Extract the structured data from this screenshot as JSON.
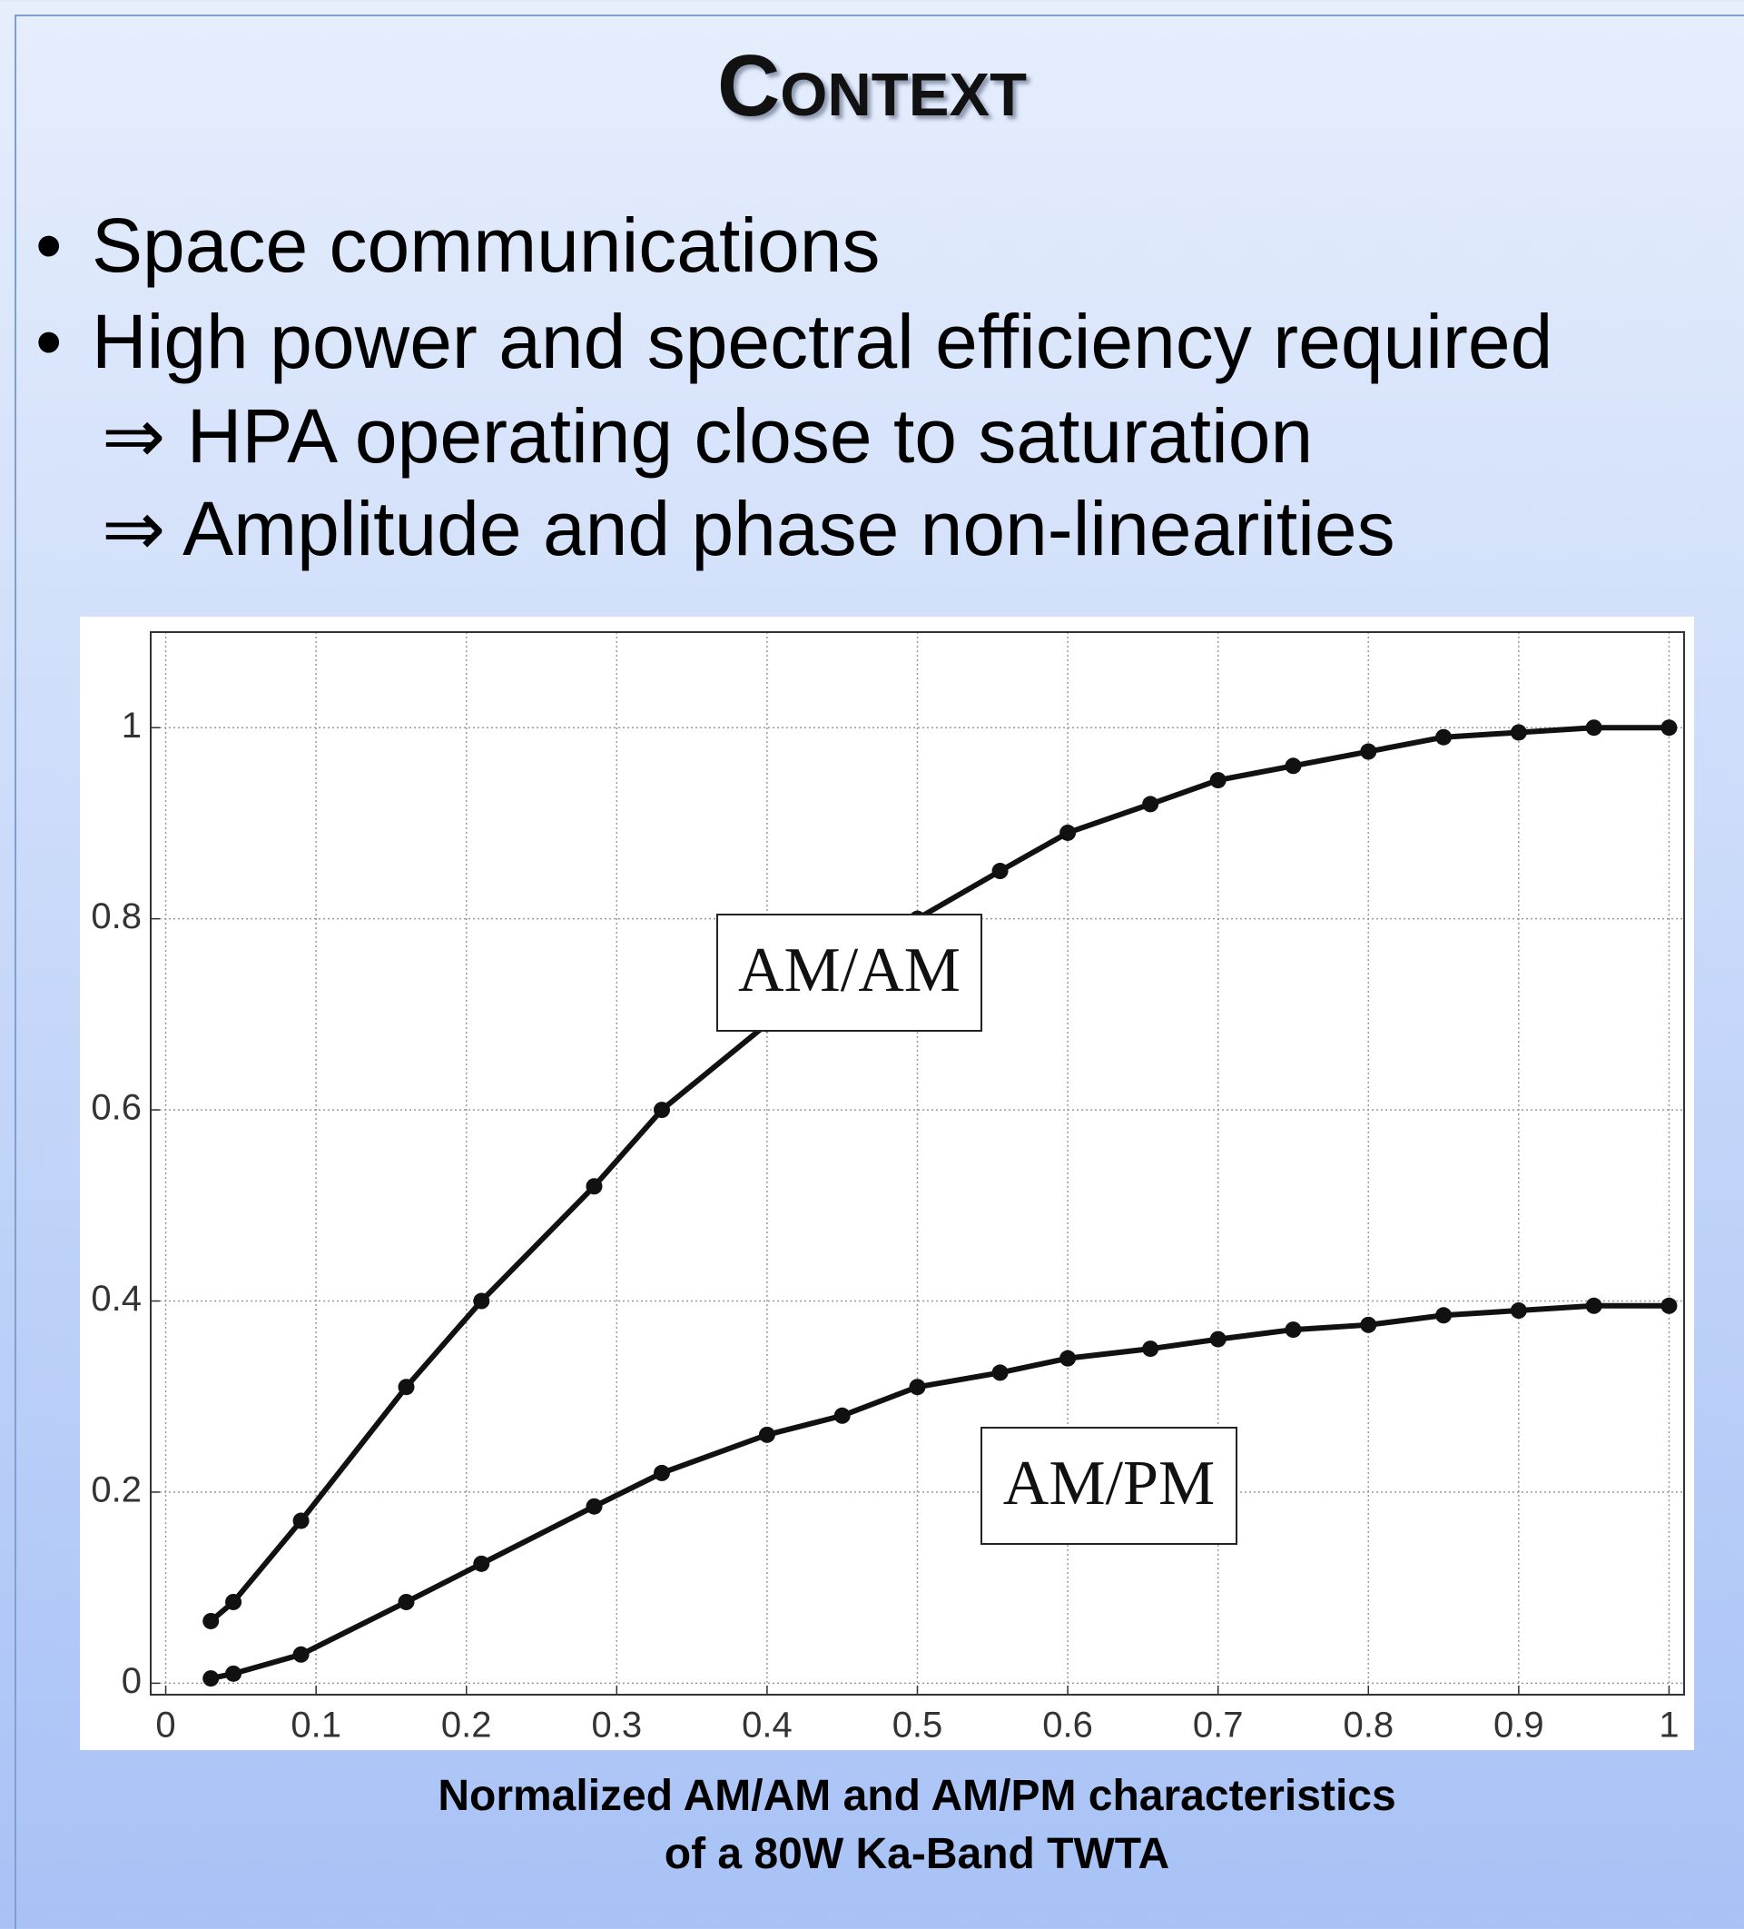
{
  "title": "Context",
  "bullets": [
    {
      "text": "Space communications"
    },
    {
      "text": "High power and spectral efficiency required",
      "subitems": [
        "⇒ HPA operating close to saturation",
        "⇒ Amplitude and phase non-linearities"
      ]
    }
  ],
  "caption": [
    "Normalized AM/AM and AM/PM characteristics",
    "of a 80W Ka-Band TWTA"
  ],
  "chart_data": {
    "type": "line",
    "x": [
      0.03,
      0.045,
      0.09,
      0.16,
      0.21,
      0.285,
      0.33,
      0.4,
      0.45,
      0.5,
      0.555,
      0.6,
      0.655,
      0.7,
      0.75,
      0.8,
      0.85,
      0.9,
      0.95,
      1.0
    ],
    "series": [
      {
        "color": "#111111",
        "values": [
          0.065,
          0.085,
          0.17,
          0.31,
          0.4,
          0.52,
          0.6,
          0.69,
          0.75,
          0.8,
          0.85,
          0.89,
          0.92,
          0.945,
          0.96,
          0.975,
          0.99,
          0.995,
          1.0,
          1.0
        ]
      },
      {
        "color": "#111111",
        "values": [
          0.005,
          0.01,
          0.03,
          0.085,
          0.125,
          0.185,
          0.22,
          0.26,
          0.28,
          0.31,
          0.325,
          0.34,
          0.35,
          0.36,
          0.37,
          0.375,
          0.385,
          0.39,
          0.395,
          0.395
        ]
      }
    ],
    "annotations": [
      "AM/AM",
      "AM/PM"
    ],
    "xlim": [
      -0.01,
      1.01
    ],
    "ylim": [
      -0.012,
      1.1
    ],
    "xticks": [
      0,
      0.1,
      0.2,
      0.3,
      0.4,
      0.5,
      0.6,
      0.7,
      0.8,
      0.9,
      1
    ],
    "yticks": [
      0,
      0.2,
      0.4,
      0.6,
      0.8,
      1
    ],
    "grid": true
  }
}
